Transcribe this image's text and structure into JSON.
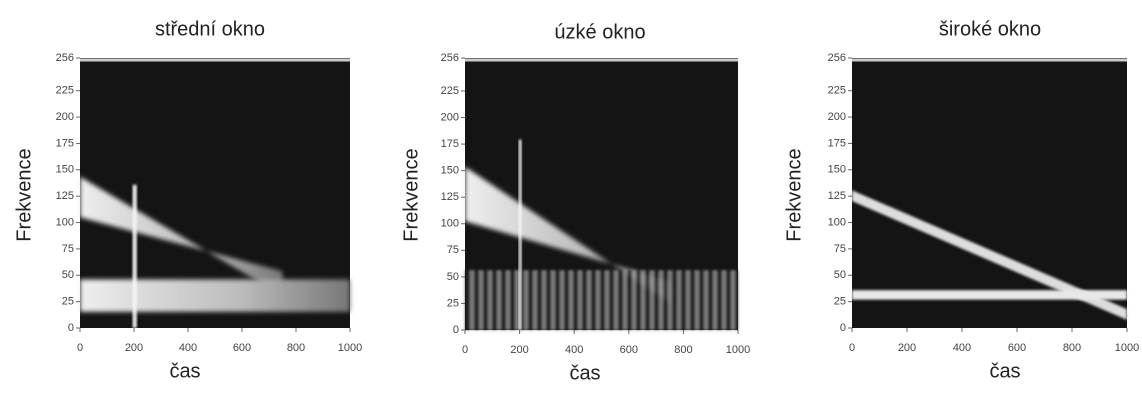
{
  "chart_data": [
    {
      "type": "spectrogram",
      "title": "střední okno",
      "xlabel": "čas",
      "ylabel": "Frekvence",
      "xlim": [
        0,
        1000
      ],
      "xticks": [
        0,
        200,
        400,
        600,
        800,
        1000
      ],
      "ylim": [
        0,
        256
      ],
      "yticks": [
        0,
        25,
        50,
        75,
        100,
        125,
        150,
        175,
        200,
        225,
        256
      ]
    },
    {
      "type": "spectrogram",
      "title": "úzké okno",
      "xlabel": "čas",
      "ylabel": "Frekvence",
      "xlim": [
        0,
        1000
      ],
      "xticks": [
        0,
        200,
        400,
        600,
        800,
        1000
      ],
      "ylim": [
        0,
        256
      ],
      "yticks": [
        0,
        25,
        50,
        75,
        100,
        125,
        150,
        175,
        200,
        225,
        256
      ]
    },
    {
      "type": "spectrogram",
      "title": "široké okno",
      "xlabel": "čas",
      "ylabel": "Frekvence",
      "xlim": [
        0,
        1000
      ],
      "xticks": [
        0,
        200,
        400,
        600,
        800,
        1000
      ],
      "ylim": [
        0,
        256
      ],
      "yticks": [
        0,
        25,
        50,
        75,
        100,
        125,
        150,
        175,
        200,
        225,
        256
      ]
    }
  ]
}
